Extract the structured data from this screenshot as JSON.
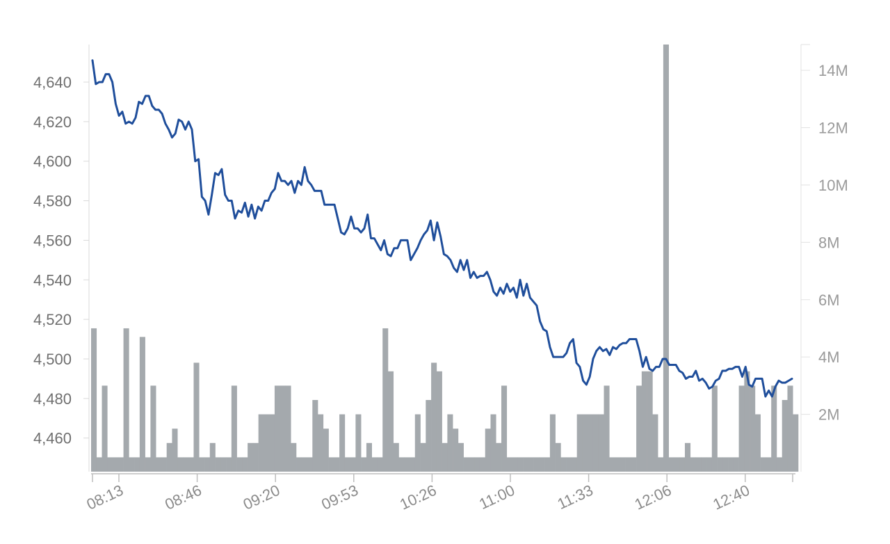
{
  "chart_data": {
    "type": "line",
    "x_ticks": [
      "08:13",
      "08:46",
      "09:20",
      "09:53",
      "10:26",
      "11:00",
      "11:33",
      "12:06",
      "12:40"
    ],
    "y_left_ticks": [
      "4,460",
      "4,480",
      "4,500",
      "4,520",
      "4,540",
      "4,560",
      "4,580",
      "4,600",
      "4,620",
      "4,640"
    ],
    "y_right_ticks": [
      "2M",
      "4M",
      "6M",
      "8M",
      "10M",
      "12M",
      "14M"
    ],
    "ylim_price": [
      4443,
      4659
    ],
    "ylim_volume": [
      0,
      14.9
    ],
    "series": [
      {
        "type": "line",
        "color": "#1f4e9b",
        "values": [
          4651,
          4639,
          4640,
          4640,
          4644,
          4644,
          4640,
          4629,
          4623,
          4625,
          4619,
          4620,
          4619,
          4622,
          4630,
          4629,
          4633,
          4633,
          4628,
          4626,
          4626,
          4624,
          4619,
          4616,
          4612,
          4614,
          4621,
          4620,
          4616,
          4620,
          4616,
          4600,
          4601,
          4582,
          4580,
          4573,
          4583,
          4594,
          4593,
          4596,
          4583,
          4580,
          4580,
          4571,
          4575,
          4574,
          4579,
          4572,
          4578,
          4571,
          4577,
          4575,
          4580,
          4580,
          4584,
          4586,
          4594,
          4590,
          4590,
          4588,
          4590,
          4584,
          4590,
          4588,
          4597,
          4590,
          4588,
          4585,
          4585,
          4585,
          4578,
          4578,
          4578,
          4578,
          4571,
          4564,
          4563,
          4566,
          4572,
          4566,
          4566,
          4564,
          4566,
          4573,
          4561,
          4561,
          4558,
          4555,
          4560,
          4553,
          4552,
          4556,
          4556,
          4560,
          4560,
          4560,
          4550,
          4553,
          4556,
          4560,
          4563,
          4565,
          4570,
          4560,
          4569,
          4562,
          4553,
          4552,
          4550,
          4546,
          4544,
          4550,
          4545,
          4550,
          4541,
          4544,
          4541,
          4542,
          4542,
          4544,
          4540,
          4534,
          4532,
          4536,
          4533,
          4538,
          4534,
          4536,
          4531,
          4540,
          4532,
          4538,
          4531,
          4529,
          4527,
          4519,
          4515,
          4514,
          4506,
          4501,
          4501,
          4501,
          4501,
          4503,
          4508,
          4510,
          4498,
          4496,
          4489,
          4487,
          4491,
          4500,
          4504,
          4506,
          4504,
          4505,
          4502,
          4506,
          4505,
          4507,
          4508,
          4508,
          4510,
          4510,
          4510,
          4504,
          4496,
          4501,
          4495,
          4494,
          4496,
          4496,
          4500,
          4500,
          4497,
          4497,
          4497,
          4494,
          4493,
          4490,
          4491,
          4491,
          4494,
          4489,
          4490,
          4488,
          4485,
          4486,
          4489,
          4490,
          4494,
          4494,
          4495,
          4495,
          4496,
          4496,
          4491,
          4496,
          4487,
          4486,
          4490,
          4490,
          4490,
          4481,
          4484,
          4481,
          4486,
          4489,
          4488,
          4488,
          4489,
          4490
        ]
      },
      {
        "type": "bar",
        "color": "#a4a9ad",
        "values": [
          5.0,
          0.5,
          3.0,
          0.5,
          0.5,
          0.5,
          5.0,
          0.5,
          0.5,
          4.7,
          0.5,
          3.0,
          0.5,
          0.5,
          1.0,
          1.5,
          0.5,
          0.5,
          0.5,
          3.8,
          0.5,
          0.5,
          1.0,
          0.5,
          0.5,
          0.5,
          3.0,
          0.5,
          0.5,
          1.0,
          1.0,
          2.0,
          2.0,
          2.0,
          3.0,
          3.0,
          3.0,
          1.0,
          0.5,
          0.5,
          0.5,
          2.5,
          2.0,
          1.5,
          0.5,
          0.5,
          2.0,
          0.5,
          0.5,
          2.0,
          0.5,
          1.0,
          0.5,
          0.5,
          5.0,
          3.5,
          1.0,
          0.5,
          0.5,
          0.5,
          2.0,
          1.0,
          2.5,
          3.8,
          3.5,
          1.0,
          2.0,
          1.5,
          1.0,
          0.5,
          0.5,
          0.5,
          0.5,
          1.5,
          2.0,
          1.0,
          3.0,
          0.5,
          0.5,
          0.5,
          0.5,
          0.5,
          0.5,
          0.5,
          0.5,
          2.0,
          1.0,
          0.5,
          0.5,
          0.5,
          2.0,
          2.0,
          2.0,
          2.0,
          2.0,
          3.0,
          0.5,
          0.5,
          0.5,
          0.5,
          0.5,
          3.0,
          3.5,
          3.5,
          2.0,
          0.5,
          14.9,
          0.5,
          0.5,
          0.5,
          1.0,
          0.5,
          0.5,
          0.5,
          0.5,
          3.0,
          0.5,
          0.5,
          0.5,
          0.5,
          3.0,
          3.5,
          3.0,
          2.0,
          0.5,
          0.5,
          3.0,
          0.5,
          2.5,
          3.0,
          2.0
        ]
      }
    ]
  }
}
